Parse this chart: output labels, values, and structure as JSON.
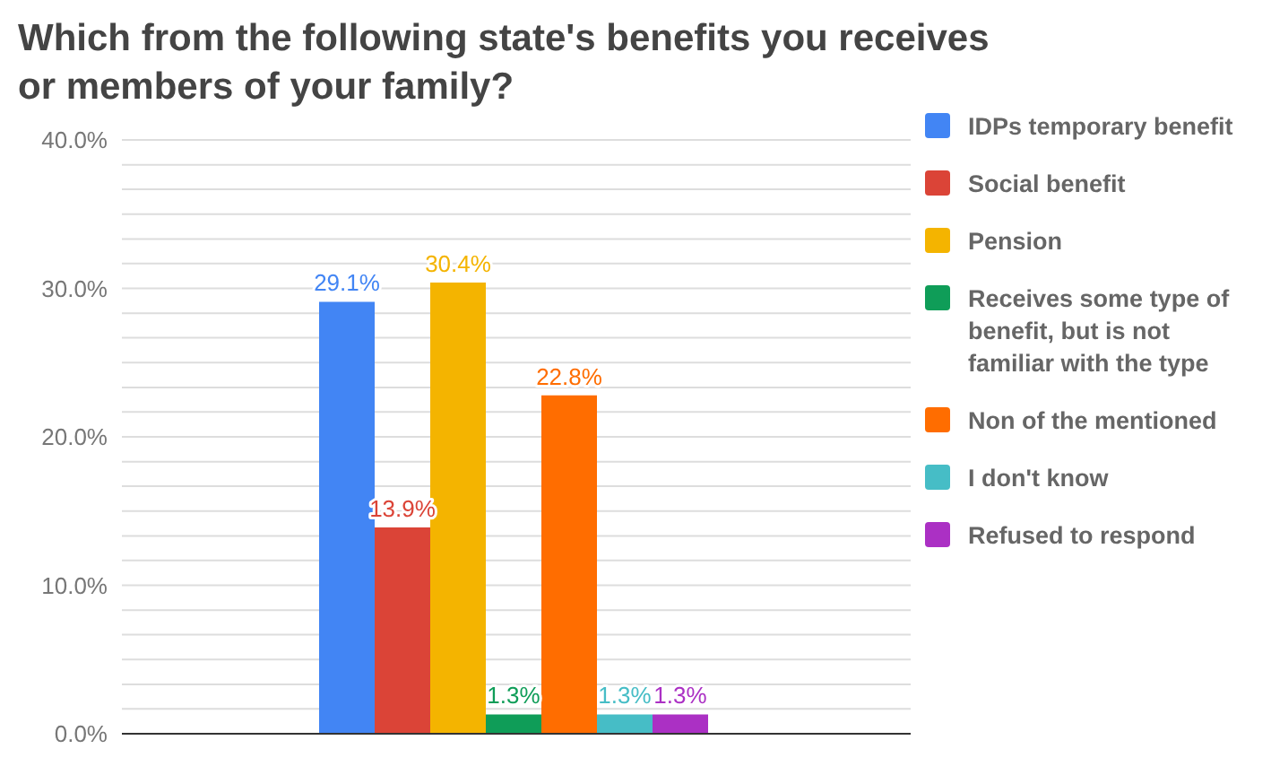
{
  "chart_data": {
    "type": "bar",
    "title": "Which from the following state's benefits you receives or members of your family?",
    "categories": [
      null
    ],
    "series": [
      {
        "name": "IDPs temporary benefit",
        "color": "#4285f4",
        "values": [
          29.1
        ],
        "value_labels": [
          "29.1%"
        ]
      },
      {
        "name": "Social benefit",
        "color": "#db4437",
        "values": [
          13.9
        ],
        "value_labels": [
          "13.9%"
        ]
      },
      {
        "name": "Pension",
        "color": "#f4b400",
        "values": [
          30.4
        ],
        "value_labels": [
          "30.4%"
        ]
      },
      {
        "name": "Receives some type of benefit, but is not familiar with the type",
        "color": "#0f9d58",
        "values": [
          1.3
        ],
        "value_labels": [
          "1.3%"
        ]
      },
      {
        "name": "Non of the mentioned",
        "color": "#ff6d00",
        "values": [
          22.8
        ],
        "value_labels": [
          "22.8%"
        ]
      },
      {
        "name": "I don't know",
        "color": "#46bdc6",
        "values": [
          1.3
        ],
        "value_labels": [
          "1.3%"
        ]
      },
      {
        "name": "Refused to respond",
        "color": "#ab30c4",
        "values": [
          1.3
        ],
        "value_labels": [
          "1.3%"
        ]
      }
    ],
    "ylim": [
      0,
      40
    ],
    "yticks": [
      {
        "value": 0,
        "label": "0.0%"
      },
      {
        "value": 1.67,
        "label": null
      },
      {
        "value": 3.33,
        "label": null
      },
      {
        "value": 5,
        "label": null
      },
      {
        "value": 6.67,
        "label": null
      },
      {
        "value": 8.33,
        "label": null
      },
      {
        "value": 10,
        "label": "10.0%"
      },
      {
        "value": 11.67,
        "label": null
      },
      {
        "value": 13.33,
        "label": null
      },
      {
        "value": 15,
        "label": null
      },
      {
        "value": 16.67,
        "label": null
      },
      {
        "value": 18.33,
        "label": null
      },
      {
        "value": 20,
        "label": "20.0%"
      },
      {
        "value": 21.67,
        "label": null
      },
      {
        "value": 23.33,
        "label": null
      },
      {
        "value": 25,
        "label": null
      },
      {
        "value": 26.67,
        "label": null
      },
      {
        "value": 28.33,
        "label": null
      },
      {
        "value": 30,
        "label": "30.0%"
      },
      {
        "value": 31.67,
        "label": null
      },
      {
        "value": 33.33,
        "label": null
      },
      {
        "value": 35,
        "label": null
      },
      {
        "value": 36.67,
        "label": null
      },
      {
        "value": 38.33,
        "label": null
      },
      {
        "value": 40,
        "label": "40.0%"
      }
    ],
    "grid": "y",
    "legend": "right"
  }
}
